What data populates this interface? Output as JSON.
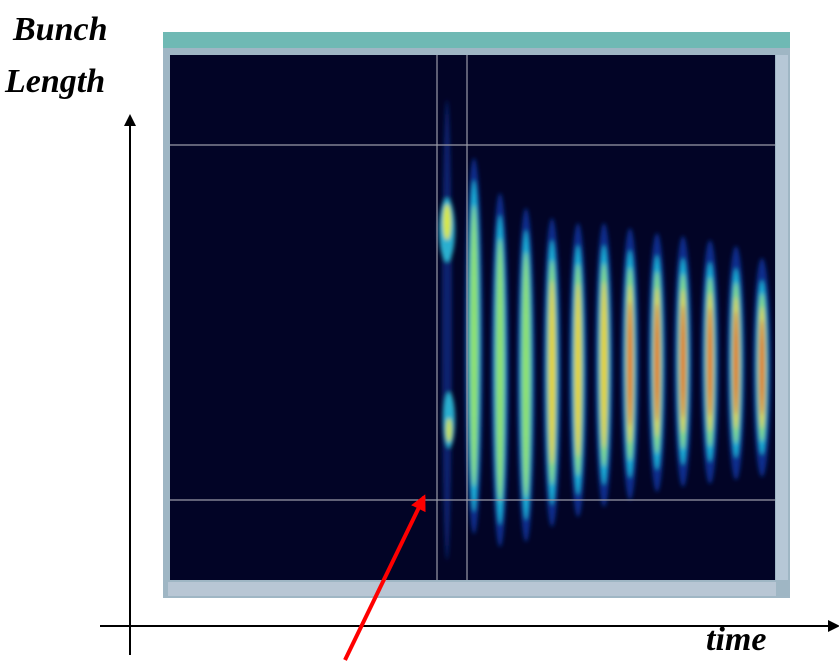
{
  "labels": {
    "y_axis_line1": "Bunch",
    "y_axis_line2": "Length",
    "x_axis": "time"
  }
}
